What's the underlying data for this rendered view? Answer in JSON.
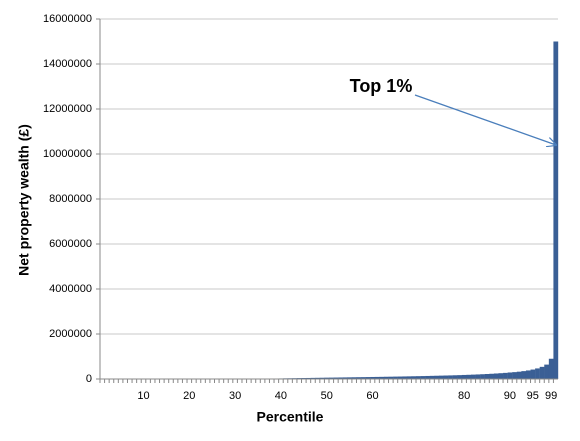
{
  "chart_data": {
    "type": "bar",
    "xlabel": "Percentile",
    "ylabel": "Net property wealth (£)",
    "annotation": "Top 1%",
    "annotation_color": "#ff0000",
    "color": "#3a5f95",
    "grid": true,
    "ylim": [
      0,
      16000000
    ],
    "yticks": [
      0,
      2000000,
      4000000,
      6000000,
      8000000,
      10000000,
      12000000,
      14000000,
      16000000
    ],
    "categories": [
      null,
      null,
      null,
      null,
      null,
      null,
      null,
      null,
      null,
      "10",
      null,
      null,
      null,
      null,
      null,
      null,
      null,
      null,
      null,
      "20",
      null,
      null,
      null,
      null,
      null,
      null,
      null,
      null,
      null,
      "30",
      null,
      null,
      null,
      null,
      null,
      null,
      null,
      null,
      null,
      "40",
      null,
      null,
      null,
      null,
      null,
      null,
      null,
      null,
      null,
      "50",
      null,
      null,
      null,
      null,
      null,
      null,
      null,
      null,
      null,
      "60",
      null,
      null,
      null,
      null,
      null,
      null,
      null,
      null,
      null,
      null,
      null,
      null,
      null,
      null,
      null,
      null,
      null,
      null,
      null,
      "80",
      null,
      null,
      null,
      null,
      null,
      null,
      null,
      null,
      null,
      "90",
      null,
      null,
      null,
      null,
      "95",
      null,
      null,
      null,
      "99",
      null
    ],
    "values": [
      0,
      0,
      0,
      0,
      0,
      0,
      0,
      0,
      0,
      0,
      0,
      0,
      0,
      0,
      0,
      0,
      0,
      0,
      0,
      0,
      0,
      0,
      0,
      0,
      0,
      0,
      0,
      0,
      0,
      0,
      0,
      0,
      0,
      0,
      0,
      0,
      0,
      0,
      20000,
      25000,
      30000,
      33000,
      36000,
      40000,
      43000,
      46000,
      50000,
      53000,
      56000,
      60000,
      62000,
      65000,
      68000,
      71000,
      74000,
      77000,
      80000,
      83000,
      86000,
      90000,
      93000,
      96000,
      100000,
      103000,
      107000,
      110000,
      114000,
      118000,
      122000,
      126000,
      130000,
      135000,
      140000,
      145000,
      150000,
      155000,
      160000,
      166000,
      172000,
      180000,
      187000,
      195000,
      203000,
      212000,
      222000,
      233000,
      245000,
      258000,
      272000,
      290000,
      305000,
      325000,
      350000,
      380000,
      420000,
      470000,
      540000,
      640000,
      900000,
      15000000
    ]
  }
}
